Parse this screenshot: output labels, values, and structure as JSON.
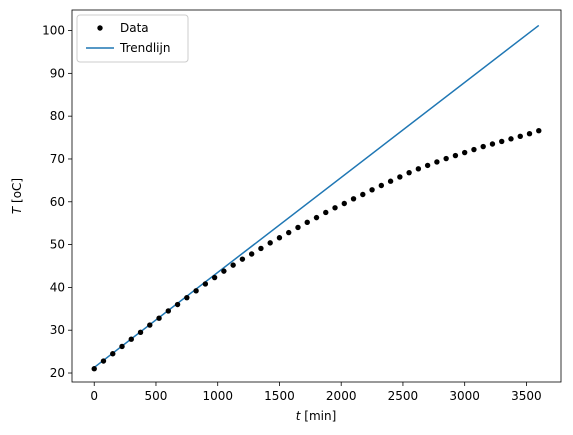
{
  "chart_data": {
    "type": "scatter",
    "xlabel_var": "t",
    "xlabel_unit": " [min]",
    "ylabel_var": "T",
    "ylabel_unit": " [oC]",
    "xlim": [
      -180,
      3780
    ],
    "ylim": [
      17.9,
      104.8
    ],
    "xticks": [
      0,
      500,
      1000,
      1500,
      2000,
      2500,
      3000,
      3500
    ],
    "yticks": [
      20,
      30,
      40,
      50,
      60,
      70,
      80,
      90,
      100
    ],
    "grid": false,
    "legend_position": "top-left",
    "series": [
      {
        "name": "Data",
        "type": "scatter",
        "color": "#000000",
        "x": [
          0,
          75,
          150,
          225,
          300,
          375,
          450,
          525,
          600,
          675,
          750,
          825,
          900,
          975,
          1050,
          1125,
          1200,
          1275,
          1350,
          1425,
          1500,
          1575,
          1650,
          1725,
          1800,
          1875,
          1950,
          2025,
          2100,
          2175,
          2250,
          2325,
          2400,
          2475,
          2550,
          2625,
          2700,
          2775,
          2850,
          2925,
          3000,
          3075,
          3150,
          3225,
          3300,
          3375,
          3450,
          3525,
          3600
        ],
        "y": [
          21.0,
          22.8,
          24.5,
          26.2,
          27.9,
          29.5,
          31.2,
          32.8,
          34.5,
          36.0,
          37.6,
          39.2,
          40.8,
          42.3,
          43.8,
          45.2,
          46.6,
          47.8,
          49.1,
          50.4,
          51.6,
          52.8,
          54.0,
          55.2,
          56.3,
          57.5,
          58.6,
          59.6,
          60.7,
          61.7,
          62.8,
          63.8,
          64.8,
          65.8,
          66.8,
          67.7,
          68.5,
          69.3,
          70.1,
          70.8,
          71.5,
          72.2,
          72.9,
          73.5,
          74.1,
          74.7,
          75.3,
          75.9,
          76.6
        ]
      },
      {
        "name": "Trendlijn",
        "type": "line",
        "color": "#1f77b4",
        "x": [
          0,
          3600
        ],
        "y": [
          21.3,
          101.2
        ]
      }
    ]
  }
}
